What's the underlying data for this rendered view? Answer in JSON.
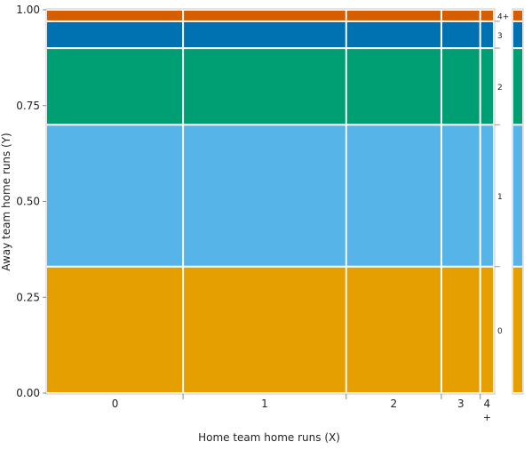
{
  "chart_data": {
    "type": "mosaic",
    "xlabel": "Home team home runs (X)",
    "ylabel": "Away team home runs (Y)",
    "ylim": [
      0,
      1
    ],
    "y_ticks": [
      "0.00",
      "0.25",
      "0.50",
      "0.75",
      "1.00"
    ],
    "x_categories": [
      {
        "label": "0",
        "width": 0.35
      },
      {
        "label": "1",
        "width": 0.42
      },
      {
        "label": "2",
        "width": 0.245
      },
      {
        "label": "3",
        "width": 0.1
      },
      {
        "label": "4+",
        "width": 0.035
      }
    ],
    "y_categories": [
      "0",
      "1",
      "2",
      "3",
      "4+"
    ],
    "segment_proportions": [
      0.33,
      0.37,
      0.2,
      0.07,
      0.03
    ],
    "series": [
      {
        "name": "0",
        "color": "#E69F00"
      },
      {
        "name": "1",
        "color": "#56B4E9"
      },
      {
        "name": "2",
        "color": "#009E73"
      },
      {
        "name": "3",
        "color": "#0072B2"
      },
      {
        "name": "4+",
        "color": "#D55E00"
      }
    ],
    "side_bar": {
      "proportions": [
        0.33,
        0.37,
        0.2,
        0.07,
        0.03
      ]
    }
  }
}
